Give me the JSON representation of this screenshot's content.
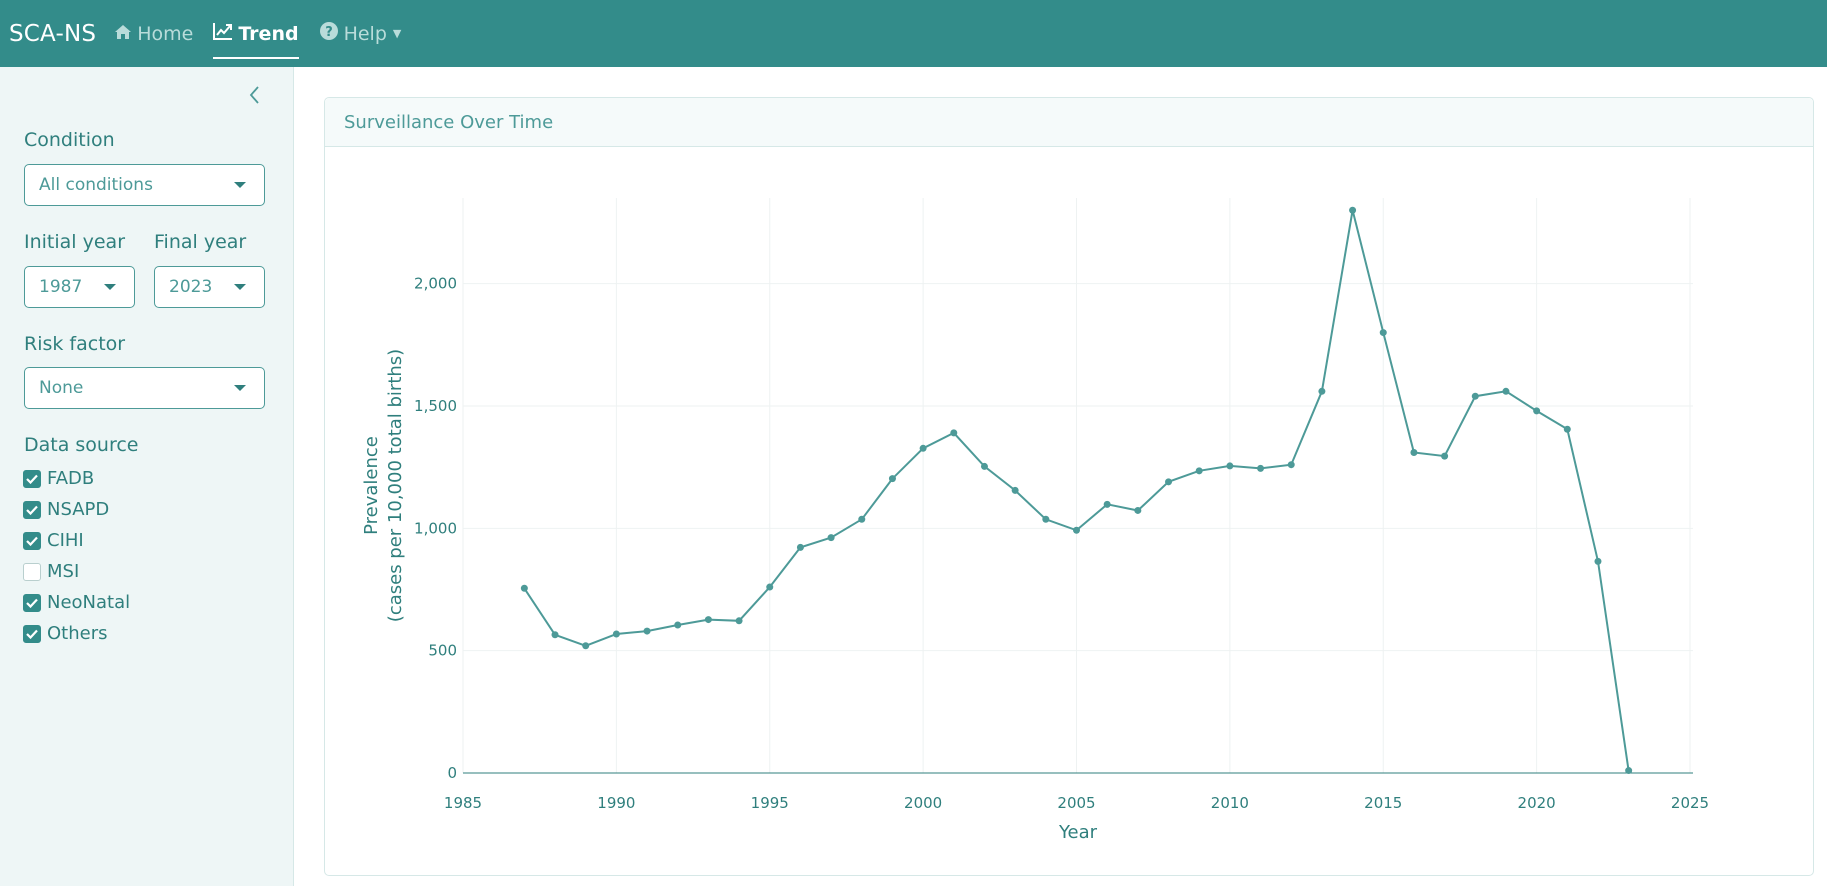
{
  "navbar": {
    "brand": "SCA-NS",
    "home_label": "Home",
    "trend_label": "Trend",
    "help_label": "Help"
  },
  "sidebar": {
    "condition_label": "Condition",
    "condition_value": "All conditions",
    "initial_year_label": "Initial year",
    "initial_year_value": "1987",
    "final_year_label": "Final year",
    "final_year_value": "2023",
    "risk_factor_label": "Risk factor",
    "risk_factor_value": "None",
    "data_source_label": "Data source",
    "sources": [
      {
        "label": "FADB",
        "checked": true
      },
      {
        "label": "NSAPD",
        "checked": true
      },
      {
        "label": "CIHI",
        "checked": true
      },
      {
        "label": "MSI",
        "checked": false
      },
      {
        "label": "NeoNatal",
        "checked": true
      },
      {
        "label": "Others",
        "checked": true
      }
    ]
  },
  "card": {
    "title": "Surveillance Over Time"
  },
  "colors": {
    "accent": "#338c8a",
    "line": "#4d9a98"
  },
  "chart_data": {
    "type": "line",
    "xlabel": "Year",
    "ylabel_line1": "Prevalence",
    "ylabel_line2": "(cases per 10,000 total births)",
    "xlim": [
      1985,
      2025
    ],
    "ylim": [
      0,
      2350
    ],
    "xticks": [
      1985,
      1990,
      1995,
      2000,
      2005,
      2010,
      2015,
      2020,
      2025
    ],
    "yticks": [
      0,
      500,
      1000,
      1500,
      2000
    ],
    "ytick_labels": [
      "0",
      "500",
      "1,000",
      "1,500",
      "2,000"
    ],
    "grid": true,
    "x": [
      1987,
      1988,
      1989,
      1990,
      1991,
      1992,
      1993,
      1994,
      1995,
      1996,
      1997,
      1998,
      1999,
      2000,
      2001,
      2002,
      2003,
      2004,
      2005,
      2006,
      2007,
      2008,
      2009,
      2010,
      2011,
      2012,
      2013,
      2014,
      2015,
      2016,
      2017,
      2018,
      2019,
      2020,
      2021,
      2022,
      2023
    ],
    "y": [
      755,
      565,
      520,
      568,
      580,
      605,
      627,
      622,
      760,
      922,
      962,
      1037,
      1203,
      1327,
      1390,
      1253,
      1155,
      1037,
      992,
      1098,
      1073,
      1190,
      1235,
      1255,
      1245,
      1260,
      1560,
      2300,
      1800,
      1310,
      1295,
      1540,
      1560,
      1480,
      1405,
      865,
      10
    ]
  }
}
